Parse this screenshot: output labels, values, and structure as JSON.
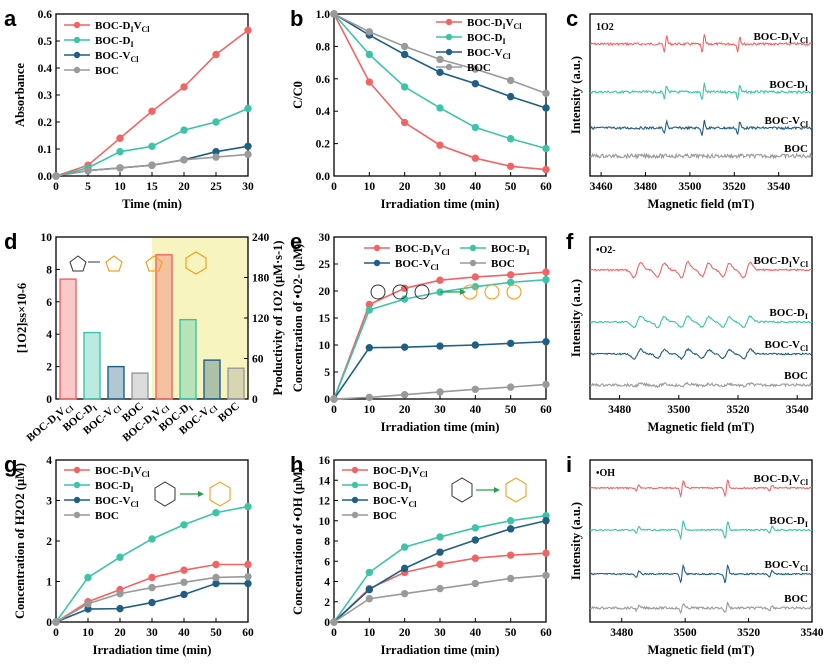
{
  "colors": {
    "red": "#f26464",
    "teal": "#3cc4a8",
    "navy": "#1f5f85",
    "gray": "#9a9a9a",
    "orange": "#f5a023",
    "yellowbg": "#f8f4bf"
  },
  "sub": {
    "dv": "VCl",
    "di": "I"
  },
  "chart_data": [
    {
      "id": "a",
      "type": "line",
      "letter": "a",
      "xlabel": "Time (min)",
      "ylabel": "Absorbance",
      "xlim": [
        0,
        30
      ],
      "ylim": [
        0,
        0.6
      ],
      "xticks": [
        "0",
        "5",
        "10",
        "15",
        "20",
        "25",
        "30"
      ],
      "yticks": [
        "0.0",
        "0.1",
        "0.2",
        "0.3",
        "0.4",
        "0.5",
        "0.6"
      ],
      "legend_pos": "top-left",
      "x": [
        0,
        5,
        10,
        15,
        20,
        25,
        30
      ],
      "series": [
        {
          "name": "BOC-DIVCl",
          "values": [
            0,
            0.04,
            0.14,
            0.24,
            0.33,
            0.45,
            0.54
          ]
        },
        {
          "name": "BOC-DI",
          "values": [
            0,
            0.03,
            0.09,
            0.11,
            0.17,
            0.2,
            0.25
          ]
        },
        {
          "name": "BOC-VCl",
          "values": [
            0,
            0.02,
            0.03,
            0.04,
            0.06,
            0.09,
            0.11
          ]
        },
        {
          "name": "BOC",
          "values": [
            0,
            0.02,
            0.03,
            0.04,
            0.06,
            0.07,
            0.08
          ]
        }
      ]
    },
    {
      "id": "b",
      "type": "line",
      "letter": "b",
      "xlabel": "Irradiation time (min)",
      "ylabel": "C/C0",
      "xlim": [
        0,
        60
      ],
      "ylim": [
        0,
        1.0
      ],
      "xticks": [
        "0",
        "10",
        "20",
        "30",
        "40",
        "50",
        "60"
      ],
      "yticks": [
        "0.0",
        "0.2",
        "0.4",
        "0.6",
        "0.8",
        "1.0"
      ],
      "legend_pos": "top-right",
      "x": [
        0,
        10,
        20,
        30,
        40,
        50,
        60
      ],
      "series": [
        {
          "name": "BOC-DIVCl",
          "values": [
            1.0,
            0.58,
            0.33,
            0.19,
            0.11,
            0.06,
            0.04
          ]
        },
        {
          "name": "BOC-DI",
          "values": [
            1.0,
            0.75,
            0.55,
            0.42,
            0.3,
            0.23,
            0.17
          ]
        },
        {
          "name": "BOC-VCl",
          "values": [
            1.0,
            0.87,
            0.75,
            0.64,
            0.57,
            0.49,
            0.42
          ]
        },
        {
          "name": "BOC",
          "values": [
            1.0,
            0.89,
            0.8,
            0.72,
            0.66,
            0.59,
            0.51
          ]
        }
      ]
    },
    {
      "id": "c",
      "type": "spectrum",
      "letter": "c",
      "xlabel": "Magnetic field (mT)",
      "ylabel": "Intensity (a.u.)",
      "xlim": [
        3455,
        3555
      ],
      "xticks": [
        "3460",
        "3480",
        "3500",
        "3520",
        "3540"
      ],
      "note": "1O2",
      "series": [
        {
          "name": "BOC-DIVCl",
          "label": "BOC-DIVCl"
        },
        {
          "name": "BOC-DI",
          "label": "BOC-DI"
        },
        {
          "name": "BOC-VCl",
          "label": "BOC-VCl"
        },
        {
          "name": "BOC",
          "label": "BOC"
        }
      ]
    },
    {
      "id": "d",
      "type": "bar",
      "letter": "d",
      "ylabel": "[1O2]ss×10-6",
      "ylabel2": "Productivity of 1O2 (μM·s-1)",
      "ylim": [
        0,
        10
      ],
      "yticks": [
        "0",
        "2",
        "4",
        "6",
        "8",
        "10"
      ],
      "ylim2": [
        0,
        240
      ],
      "yticks2": [
        "0",
        "60",
        "120",
        "180",
        "240"
      ],
      "categories": [
        "BOC-DIVCl",
        "BOC-DI",
        "BOC-VCl",
        "BOC",
        "BOC-DIVCl",
        "BOC-DI",
        "BOC-VCl",
        "BOC"
      ],
      "values": [
        7.4,
        4.1,
        2.0,
        1.6,
        8.9,
        4.9,
        2.4,
        1.9
      ]
    },
    {
      "id": "e",
      "type": "line",
      "letter": "e",
      "xlabel": "Irradiation time (min)",
      "ylabel": "Concentration of •O2- (μM)",
      "xlim": [
        0,
        60
      ],
      "ylim": [
        0,
        30
      ],
      "xticks": [
        "0",
        "10",
        "20",
        "30",
        "40",
        "50",
        "60"
      ],
      "yticks": [
        "0",
        "5",
        "10",
        "15",
        "20",
        "25",
        "30"
      ],
      "legend_pos": "top",
      "x": [
        0,
        10,
        20,
        30,
        40,
        50,
        60
      ],
      "series": [
        {
          "name": "BOC-DIVCl",
          "values": [
            0,
            17.5,
            20.5,
            22.0,
            22.6,
            23.0,
            23.5
          ]
        },
        {
          "name": "BOC-DI",
          "values": [
            0,
            16.5,
            18.5,
            19.8,
            20.8,
            21.6,
            22.1
          ]
        },
        {
          "name": "BOC-VCl",
          "values": [
            0,
            9.5,
            9.6,
            9.8,
            10.0,
            10.3,
            10.6
          ]
        },
        {
          "name": "BOC",
          "values": [
            0,
            0.3,
            0.8,
            1.3,
            1.8,
            2.2,
            2.7
          ]
        }
      ]
    },
    {
      "id": "f",
      "type": "spectrum",
      "letter": "f",
      "xlabel": "Magnetic field (mT)",
      "ylabel": "Intensity (a.u.)",
      "xlim": [
        3470,
        3545
      ],
      "xticks": [
        "3480",
        "3500",
        "3520",
        "3540"
      ],
      "note": "•O2-",
      "series": [
        {
          "name": "BOC-DIVCl",
          "label": "BOC-DIVCl"
        },
        {
          "name": "BOC-DI",
          "label": "BOC-DI"
        },
        {
          "name": "BOC-VCl",
          "label": "BOC-VCl"
        },
        {
          "name": "BOC",
          "label": "BOC"
        }
      ]
    },
    {
      "id": "g",
      "type": "line",
      "letter": "g",
      "xlabel": "Irradiation time (min)",
      "ylabel": "Concentration of H2O2 (μM)",
      "xlim": [
        0,
        60
      ],
      "ylim": [
        0,
        4
      ],
      "xticks": [
        "0",
        "10",
        "20",
        "30",
        "40",
        "50",
        "60"
      ],
      "yticks": [
        "0",
        "1",
        "2",
        "3",
        "4"
      ],
      "legend_pos": "top-left",
      "x": [
        0,
        10,
        20,
        30,
        40,
        50,
        60
      ],
      "series": [
        {
          "name": "BOC-DIVCl",
          "values": [
            0,
            0.5,
            0.8,
            1.1,
            1.28,
            1.42,
            1.42
          ]
        },
        {
          "name": "BOC-DI",
          "values": [
            0,
            1.1,
            1.6,
            2.05,
            2.4,
            2.7,
            2.85
          ]
        },
        {
          "name": "BOC-VCl",
          "values": [
            0,
            0.32,
            0.33,
            0.48,
            0.68,
            0.95,
            0.95
          ]
        },
        {
          "name": "BOC",
          "values": [
            0,
            0.45,
            0.7,
            0.85,
            0.98,
            1.1,
            1.12
          ]
        }
      ]
    },
    {
      "id": "h",
      "type": "line",
      "letter": "h",
      "xlabel": "Irradiation time (min)",
      "ylabel": "Concentration of •OH (μM)",
      "xlim": [
        0,
        60
      ],
      "ylim": [
        0,
        16
      ],
      "xticks": [
        "0",
        "10",
        "20",
        "30",
        "40",
        "50",
        "60"
      ],
      "yticks": [
        "0",
        "2",
        "4",
        "6",
        "8",
        "10",
        "12",
        "14",
        "16"
      ],
      "legend_pos": "top-left",
      "x": [
        0,
        10,
        20,
        30,
        40,
        50,
        60
      ],
      "series": [
        {
          "name": "BOC-DIVCl",
          "values": [
            0,
            3.3,
            4.9,
            5.7,
            6.3,
            6.6,
            6.8
          ]
        },
        {
          "name": "BOC-DI",
          "values": [
            0,
            4.9,
            7.4,
            8.4,
            9.3,
            10.0,
            10.5
          ]
        },
        {
          "name": "BOC-VCl",
          "values": [
            0,
            3.2,
            5.3,
            6.9,
            8.1,
            9.2,
            10.0
          ]
        },
        {
          "name": "BOC",
          "values": [
            0,
            2.3,
            2.8,
            3.3,
            3.8,
            4.3,
            4.6
          ]
        }
      ]
    },
    {
      "id": "i",
      "type": "spectrum",
      "letter": "i",
      "xlabel": "Magnetic field (mT)",
      "ylabel": "Intensity (a.u.)",
      "xlim": [
        3470,
        3540
      ],
      "xticks": [
        "3480",
        "3500",
        "3520",
        "3540"
      ],
      "note": "•OH",
      "series": [
        {
          "name": "BOC-DIVCl",
          "label": "BOC-DIVCl"
        },
        {
          "name": "BOC-DI",
          "label": "BOC-DI"
        },
        {
          "name": "BOC-VCl",
          "label": "BOC-VCl"
        },
        {
          "name": "BOC",
          "label": "BOC"
        }
      ]
    }
  ]
}
